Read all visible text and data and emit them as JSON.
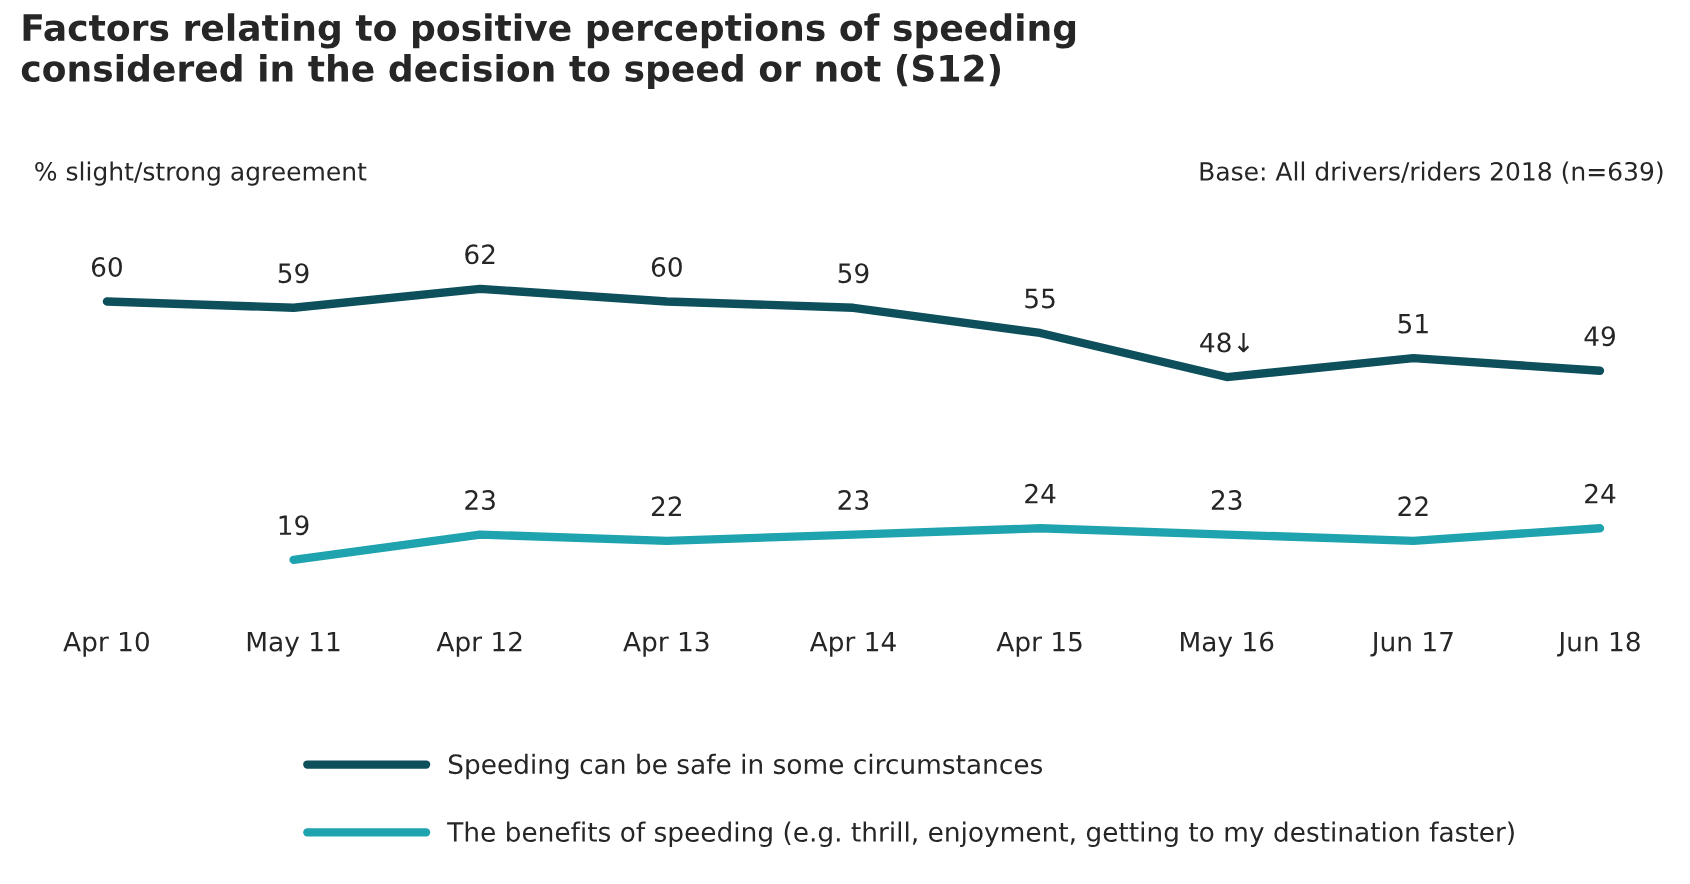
{
  "chart_data": {
    "type": "line",
    "title": "Factors relating to positive perceptions of speeding\nconsidered in the decision to speed or not (S12)",
    "ylabel": "% slight/strong agreement",
    "annotations": [
      "Base: All drivers/riders 2018 (n=639)"
    ],
    "categories": [
      "Apr 10",
      "May 11",
      "Apr 12",
      "Apr 13",
      "Apr 14",
      "Apr 15",
      "May 16",
      "Jun 17",
      "Jun 18"
    ],
    "series": [
      {
        "name": "Speeding can be safe in some circumstances",
        "color": "#0e4f5c",
        "values": [
          60,
          59,
          62,
          60,
          59,
          55,
          48,
          51,
          49
        ],
        "value_labels": [
          "60",
          "59",
          "62",
          "60",
          "59",
          "55",
          "48↓",
          "51",
          "49"
        ]
      },
      {
        "name": "The benefits of speeding (e.g. thrill, enjoyment, getting to my destination faster)",
        "color": "#1fa3ae",
        "values": [
          null,
          19,
          23,
          22,
          23,
          24,
          23,
          22,
          24
        ],
        "value_labels": [
          null,
          "19",
          "23",
          "22",
          "23",
          "24",
          "23",
          "22",
          "24"
        ]
      }
    ],
    "tick_labels": "x",
    "legend": "bottom left",
    "grid": false,
    "marker": "none",
    "line_style": "solid"
  }
}
